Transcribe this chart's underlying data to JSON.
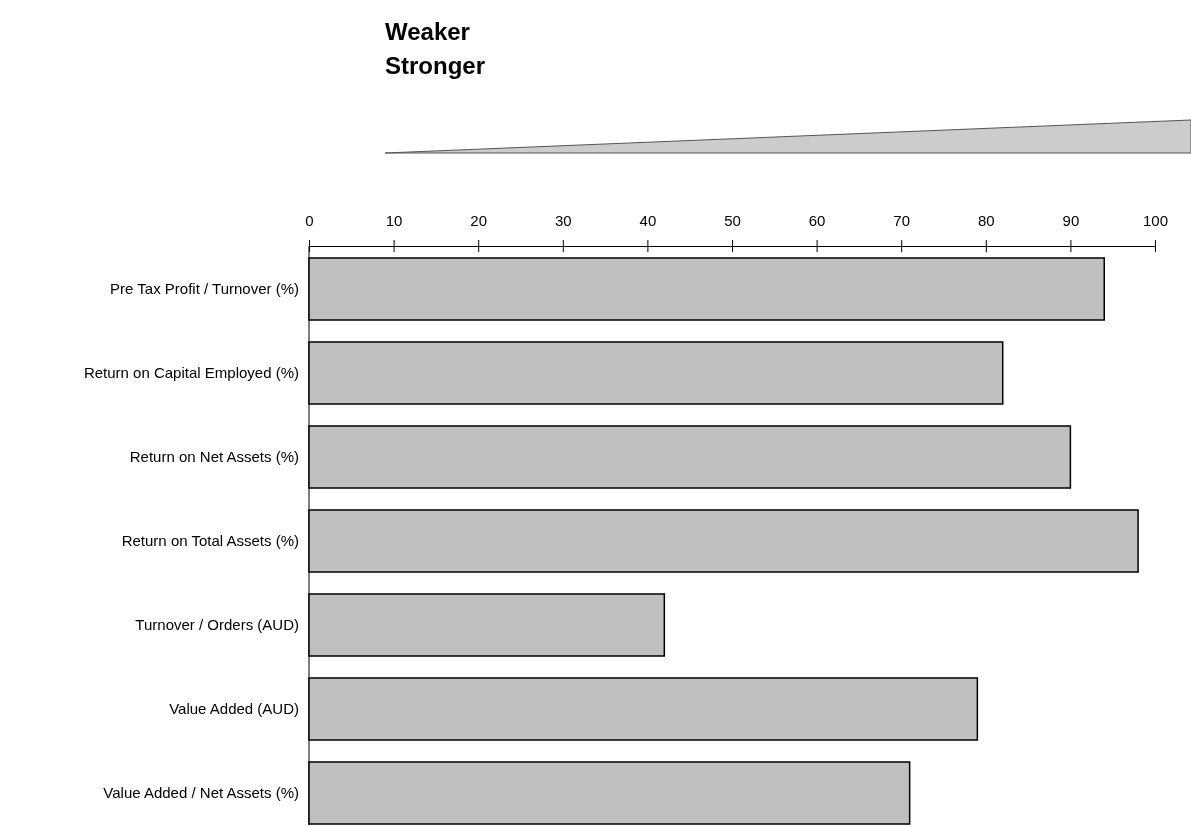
{
  "chart_data": {
    "type": "bar",
    "orientation": "horizontal",
    "title": "Weaker",
    "subtitle": "Stronger",
    "categories": [
      "Pre Tax Profit / Turnover (%)",
      "Return on Capital Employed (%)",
      "Return on Net Assets (%)",
      "Return on Total Assets (%)",
      "Turnover / Orders (AUD)",
      "Value Added (AUD)",
      "Value Added / Net Assets (%)"
    ],
    "values": [
      94,
      82,
      90,
      98,
      42,
      79,
      71
    ],
    "color": "#c0c0c0",
    "xlim": [
      0,
      100
    ],
    "xticks": [
      0,
      10,
      20,
      30,
      40,
      50,
      60,
      70,
      80,
      90,
      100
    ],
    "grid": false
  }
}
